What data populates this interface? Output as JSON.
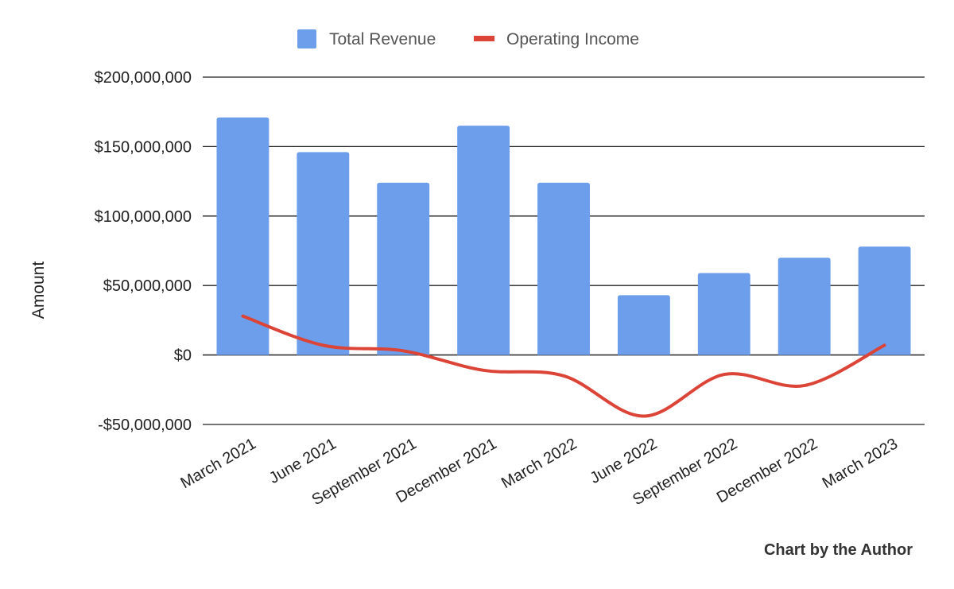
{
  "chart_data": {
    "type": "bar",
    "categories": [
      "March 2021",
      "June 2021",
      "September 2021",
      "December 2021",
      "March 2022",
      "June 2022",
      "September 2022",
      "December 2022",
      "March 2023"
    ],
    "series": [
      {
        "name": "Total Revenue",
        "type": "bar",
        "color": "#6D9EEB",
        "values": [
          171000000,
          146000000,
          124000000,
          165000000,
          124000000,
          43000000,
          59000000,
          70000000,
          78000000
        ]
      },
      {
        "name": "Operating Income",
        "type": "line",
        "color": "#DB4437",
        "values": [
          28000000,
          7000000,
          3000000,
          -11000000,
          -15000000,
          -44000000,
          -14000000,
          -22000000,
          7000000
        ]
      }
    ],
    "ylabel": "Amount",
    "ylim": [
      -50000000,
      200000000
    ],
    "yticks": [
      200000000,
      150000000,
      100000000,
      50000000,
      0,
      -50000000
    ],
    "ytick_labels": [
      "$200,000,000",
      "$150,000,000",
      "$100,000,000",
      "$50,000,000",
      "$0",
      "-$50,000,000"
    ],
    "grid": true,
    "legend_position": "top-center",
    "credit": "Chart by the Author"
  }
}
